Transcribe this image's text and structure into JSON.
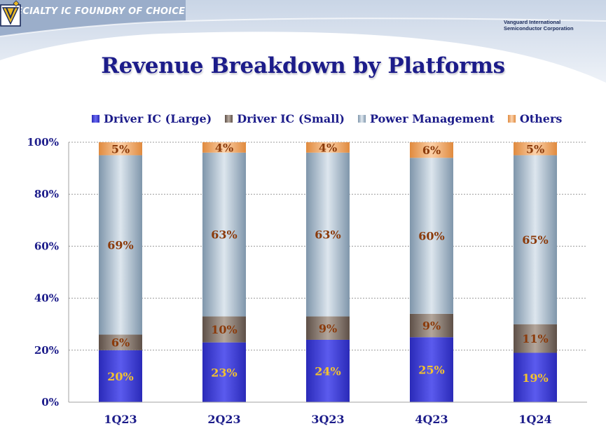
{
  "header": {
    "tagline": "SPECIALTY IC FOUNDRY OF CHOICE",
    "company_line1": "Vanguard International",
    "company_line2": "Semiconductor Corporation",
    "logo_icon": "vis-triangle-logo-icon"
  },
  "chart_data": {
    "type": "bar",
    "stacked": true,
    "title": "Revenue Breakdown by Platforms",
    "xlabel": "",
    "ylabel": "",
    "ylim": [
      0,
      100
    ],
    "yticks": [
      "0%",
      "20%",
      "40%",
      "60%",
      "80%",
      "100%"
    ],
    "grid": true,
    "legend_position": "top",
    "categories": [
      "1Q23",
      "2Q23",
      "3Q23",
      "4Q23",
      "1Q24"
    ],
    "series": [
      {
        "name": "Driver IC (Large)",
        "color": "#3a3ad6",
        "label_color": "#f2c230",
        "values": [
          20,
          23,
          24,
          25,
          19
        ],
        "labels": [
          "20%",
          "23%",
          "24%",
          "25%",
          "19%"
        ]
      },
      {
        "name": "Driver IC (Small)",
        "color": "#7a6a60",
        "label_color": "#8b3a0a",
        "values": [
          6,
          10,
          9,
          9,
          11
        ],
        "labels": [
          "6%",
          "10%",
          "9%",
          "9%",
          "11%"
        ]
      },
      {
        "name": "Power Management",
        "color": "#a9bccb",
        "label_color": "#8b3a0a",
        "values": [
          69,
          63,
          63,
          60,
          65
        ],
        "labels": [
          "69%",
          "63%",
          "63%",
          "60%",
          "65%"
        ]
      },
      {
        "name": "Others",
        "color": "#f2ad6e",
        "label_color": "#8b3a0a",
        "values": [
          5,
          4,
          4,
          6,
          5
        ],
        "labels": [
          "5%",
          "4%",
          "4%",
          "6%",
          "5%"
        ]
      }
    ]
  }
}
